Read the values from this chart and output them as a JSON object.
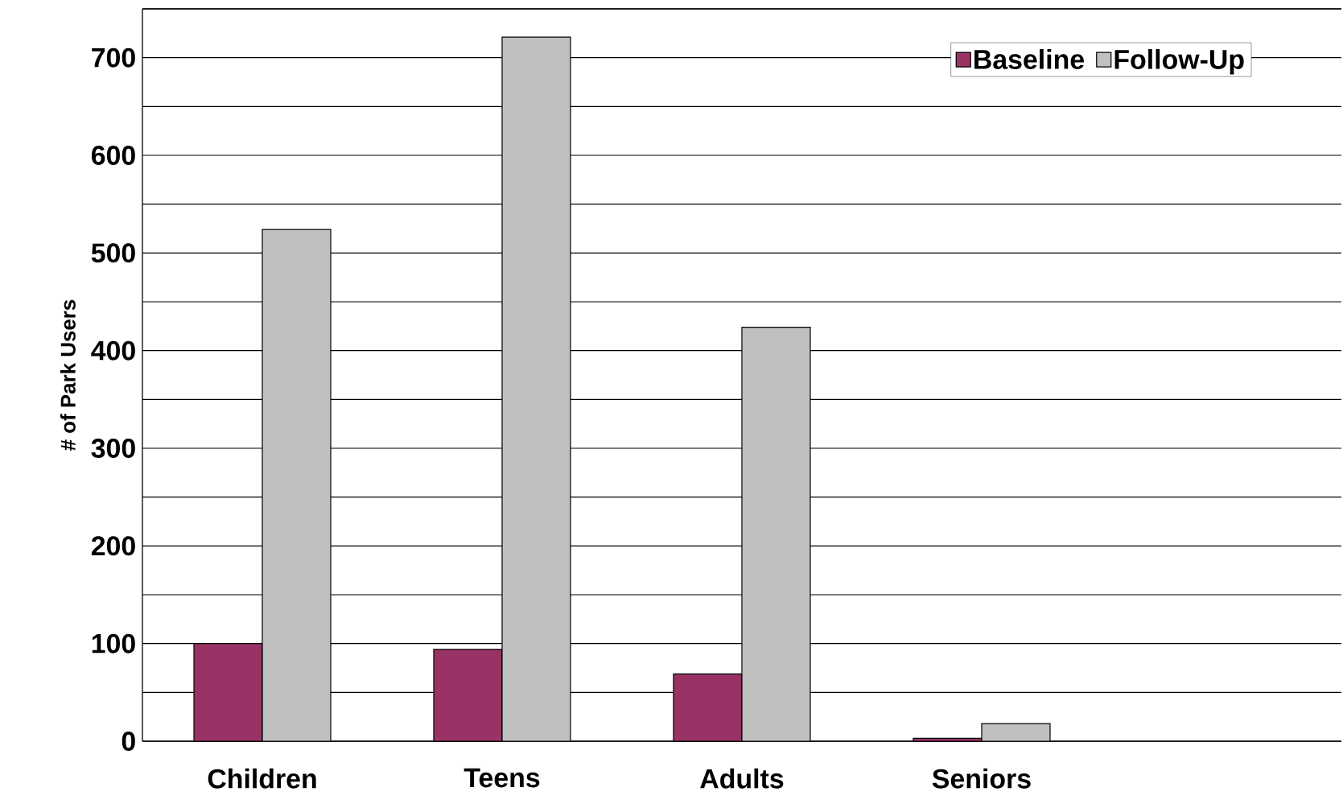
{
  "chart_data": {
    "type": "bar",
    "ylabel": "# of Park Users",
    "categories": [
      "Children",
      "Teens",
      "Adults",
      "Seniors",
      null
    ],
    "series": [
      {
        "name": "Baseline",
        "color": "#993366",
        "values": [
          100,
          94,
          69,
          3,
          null
        ]
      },
      {
        "name": "Follow-Up",
        "color": "#c0c0c0",
        "values": [
          524,
          721,
          424,
          18,
          null
        ]
      }
    ],
    "ylim": [
      0,
      750
    ],
    "yticks": [
      0,
      {
        "value": 50,
        "label": null
      },
      100,
      {
        "value": 150,
        "label": null
      },
      200,
      {
        "value": 250,
        "label": null
      },
      300,
      {
        "value": 350,
        "label": null
      },
      400,
      {
        "value": 450,
        "label": null
      },
      500,
      {
        "value": 550,
        "label": null
      },
      600,
      {
        "value": 650,
        "label": null
      },
      700,
      {
        "value": 750,
        "label": null
      }
    ],
    "grid": "y",
    "legend": "top right"
  }
}
